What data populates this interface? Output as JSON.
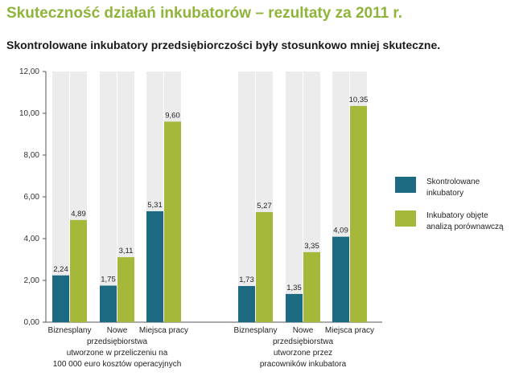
{
  "header": {
    "title": "Skuteczność działań inkubatorów – rezultaty za 2011 r.",
    "subtitle": "Skontrolowane inkubatory przedsiębiorczości były stosunkowo mniej skuteczne."
  },
  "colors": {
    "title": "#8fb43a",
    "series_1": "#1c6a82",
    "series_2": "#a6b83a",
    "background_column": "#ececec",
    "axis": "#555555"
  },
  "chart_data": {
    "type": "bar",
    "title": "",
    "xlabel": "",
    "ylabel": "",
    "ylim": [
      0,
      12
    ],
    "yticks": [
      "0,00",
      "2,00",
      "4,00",
      "6,00",
      "8,00",
      "10,00",
      "12,00"
    ],
    "grid": false,
    "legend_position": "right",
    "groups": [
      {
        "categories": [
          [
            "Biznesplany"
          ],
          [
            "Nowe",
            "przedsiębiorstwa",
            "utworzone w przeliczeniu na",
            "100 000 euro kosztów operacyjnych"
          ],
          [
            "Miejsca pracy"
          ]
        ],
        "series": [
          {
            "name": "Skontrolowane inkubatory",
            "values": [
              2.24,
              1.75,
              5.31
            ],
            "labels": [
              "2,24",
              "1,75",
              "5,31"
            ]
          },
          {
            "name": "Inkubatory objęte analizą porównawczą",
            "values": [
              4.89,
              3.11,
              9.6
            ],
            "labels": [
              "4,89",
              "3,11",
              "9,60"
            ]
          }
        ]
      },
      {
        "categories": [
          [
            "Biznesplany"
          ],
          [
            "Nowe",
            "przedsiębiorstwa",
            "utworzone przez",
            "pracowników inkubatora"
          ],
          [
            "Miejsca pracy"
          ]
        ],
        "series": [
          {
            "name": "Skontrolowane inkubatory",
            "values": [
              1.73,
              1.35,
              4.09
            ],
            "labels": [
              "1,73",
              "1,35",
              "4,09"
            ]
          },
          {
            "name": "Inkubatory objęte analizą porównawczą",
            "values": [
              5.27,
              3.35,
              10.35
            ],
            "labels": [
              "5,27",
              "3,35",
              "10,35"
            ]
          }
        ]
      }
    ],
    "legend": [
      {
        "lines": [
          "Skontrolowane",
          "inkubatory"
        ]
      },
      {
        "lines": [
          "Inkubatory objęte",
          "analizą porównawczą"
        ]
      }
    ]
  }
}
